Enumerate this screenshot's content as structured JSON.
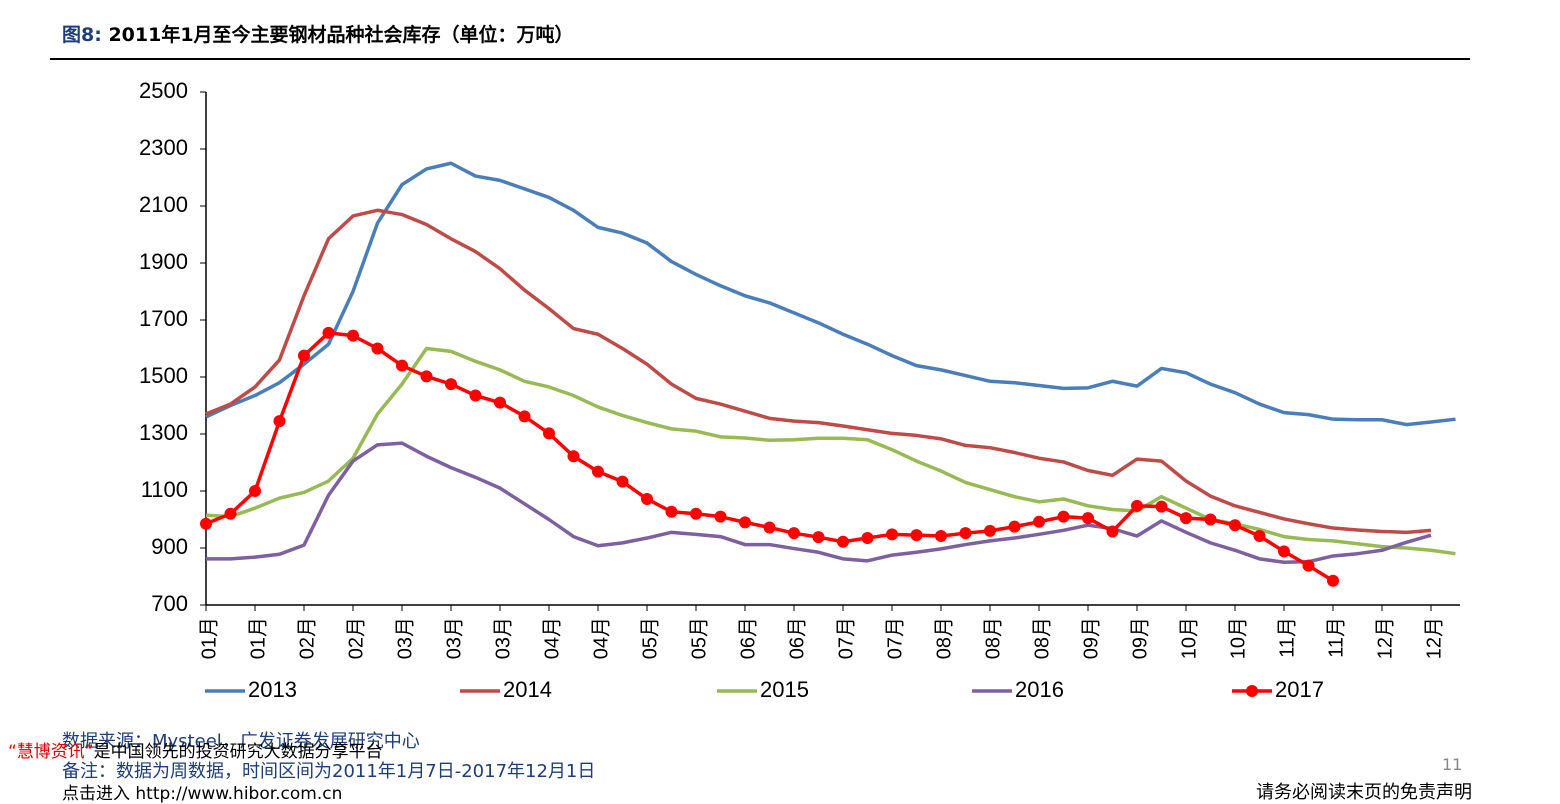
{
  "page": {
    "figure_label": "图8:",
    "title": "2011年1月至今主要钢材品种社会库存（单位：万吨）",
    "source": "数据来源：Mysteel，广发证券发展研究中心",
    "note": "备注：数据为周数据，时间区间为2011年1月7日-2017年12月1日",
    "page_number": "11",
    "disclaimer": "请务必阅读末页的免责声明",
    "watermark_brand": "“慧博资讯”",
    "watermark_text": "是中国领先的投资研究大数据分享平台",
    "watermark_link_prefix": "点击进入",
    "watermark_link": "http://www.hibor.com.cn"
  },
  "chart_data": {
    "type": "line",
    "categories": [
      "01月",
      null,
      "01月",
      null,
      "02月",
      null,
      "02月",
      null,
      "03月",
      null,
      "03月",
      null,
      "03月",
      null,
      "04月",
      null,
      "04月",
      null,
      "05月",
      null,
      "05月",
      null,
      "06月",
      null,
      "06月",
      null,
      "07月",
      null,
      "07月",
      null,
      "08月",
      null,
      "08月",
      null,
      "08月",
      null,
      "09月",
      null,
      "09月",
      null,
      "10月",
      null,
      "10月",
      null,
      "11月",
      null,
      "11月",
      null,
      "12月",
      null,
      "12月",
      null
    ],
    "series": [
      {
        "name": "2013",
        "color": "#4a7ebb",
        "values": [
          1360,
          1400,
          1435,
          1480,
          1545,
          1615,
          1800,
          2040,
          2175,
          2230,
          2250,
          2205,
          2190,
          2160,
          2130,
          2085,
          2025,
          2005,
          1970,
          1905,
          1860,
          1820,
          1785,
          1760,
          1725,
          1690,
          1650,
          1615,
          1575,
          1540,
          1525,
          1505,
          1485,
          1480,
          1470,
          1460,
          1462,
          1485,
          1468,
          1530,
          1515,
          1475,
          1445,
          1405,
          1375,
          1368,
          1352,
          1350,
          1350,
          1333,
          1342,
          1352
        ]
      },
      {
        "name": "2014",
        "color": "#be4b48",
        "values": [
          1370,
          1405,
          1465,
          1560,
          1785,
          1985,
          2065,
          2085,
          2070,
          2035,
          1985,
          1940,
          1880,
          1805,
          1740,
          1670,
          1650,
          1600,
          1545,
          1475,
          1425,
          1405,
          1380,
          1355,
          1345,
          1340,
          1328,
          1315,
          1302,
          1295,
          1283,
          1260,
          1252,
          1235,
          1215,
          1202,
          1172,
          1155,
          1212,
          1205,
          1135,
          1082,
          1048,
          1025,
          1002,
          985,
          970,
          963,
          958,
          955,
          962,
          null
        ]
      },
      {
        "name": "2015",
        "color": "#98b954",
        "values": [
          1015,
          1010,
          1040,
          1075,
          1095,
          1135,
          1215,
          1370,
          1475,
          1600,
          1590,
          1555,
          1525,
          1485,
          1465,
          1435,
          1395,
          1365,
          1340,
          1318,
          1310,
          1290,
          1286,
          1278,
          1280,
          1285,
          1285,
          1280,
          1245,
          1205,
          1170,
          1130,
          1105,
          1080,
          1062,
          1072,
          1048,
          1035,
          1030,
          1080,
          1040,
          1000,
          985,
          965,
          940,
          930,
          925,
          915,
          905,
          900,
          892,
          880
        ]
      },
      {
        "name": "2016",
        "color": "#7d60a0",
        "values": [
          862,
          862,
          868,
          878,
          910,
          1085,
          1205,
          1262,
          1268,
          1222,
          1182,
          1148,
          1110,
          1055,
          1000,
          940,
          908,
          918,
          935,
          955,
          948,
          940,
          912,
          912,
          898,
          885,
          862,
          855,
          875,
          885,
          897,
          912,
          925,
          935,
          948,
          962,
          980,
          968,
          942,
          995,
          955,
          918,
          892,
          862,
          850,
          852,
          872,
          880,
          892,
          920,
          945,
          null
        ]
      },
      {
        "name": "2017",
        "color": "#ff0000",
        "marker": true,
        "values": [
          985,
          1020,
          1100,
          1345,
          1575,
          1655,
          1645,
          1600,
          1540,
          1502,
          1475,
          1435,
          1410,
          1362,
          1302,
          1222,
          1168,
          1133,
          1072,
          1027,
          1020,
          1010,
          990,
          972,
          952,
          938,
          922,
          935,
          948,
          945,
          942,
          952,
          960,
          975,
          992,
          1010,
          1005,
          958,
          1048,
          1045,
          1005,
          1000,
          980,
          942,
          888,
          838,
          785,
          null,
          null,
          null,
          null,
          null
        ]
      }
    ],
    "ylim": [
      700,
      2500
    ],
    "yticks": [
      700,
      900,
      1100,
      1300,
      1500,
      1700,
      1900,
      2100,
      2300,
      2500
    ],
    "grid": false,
    "legend": "bottom"
  }
}
